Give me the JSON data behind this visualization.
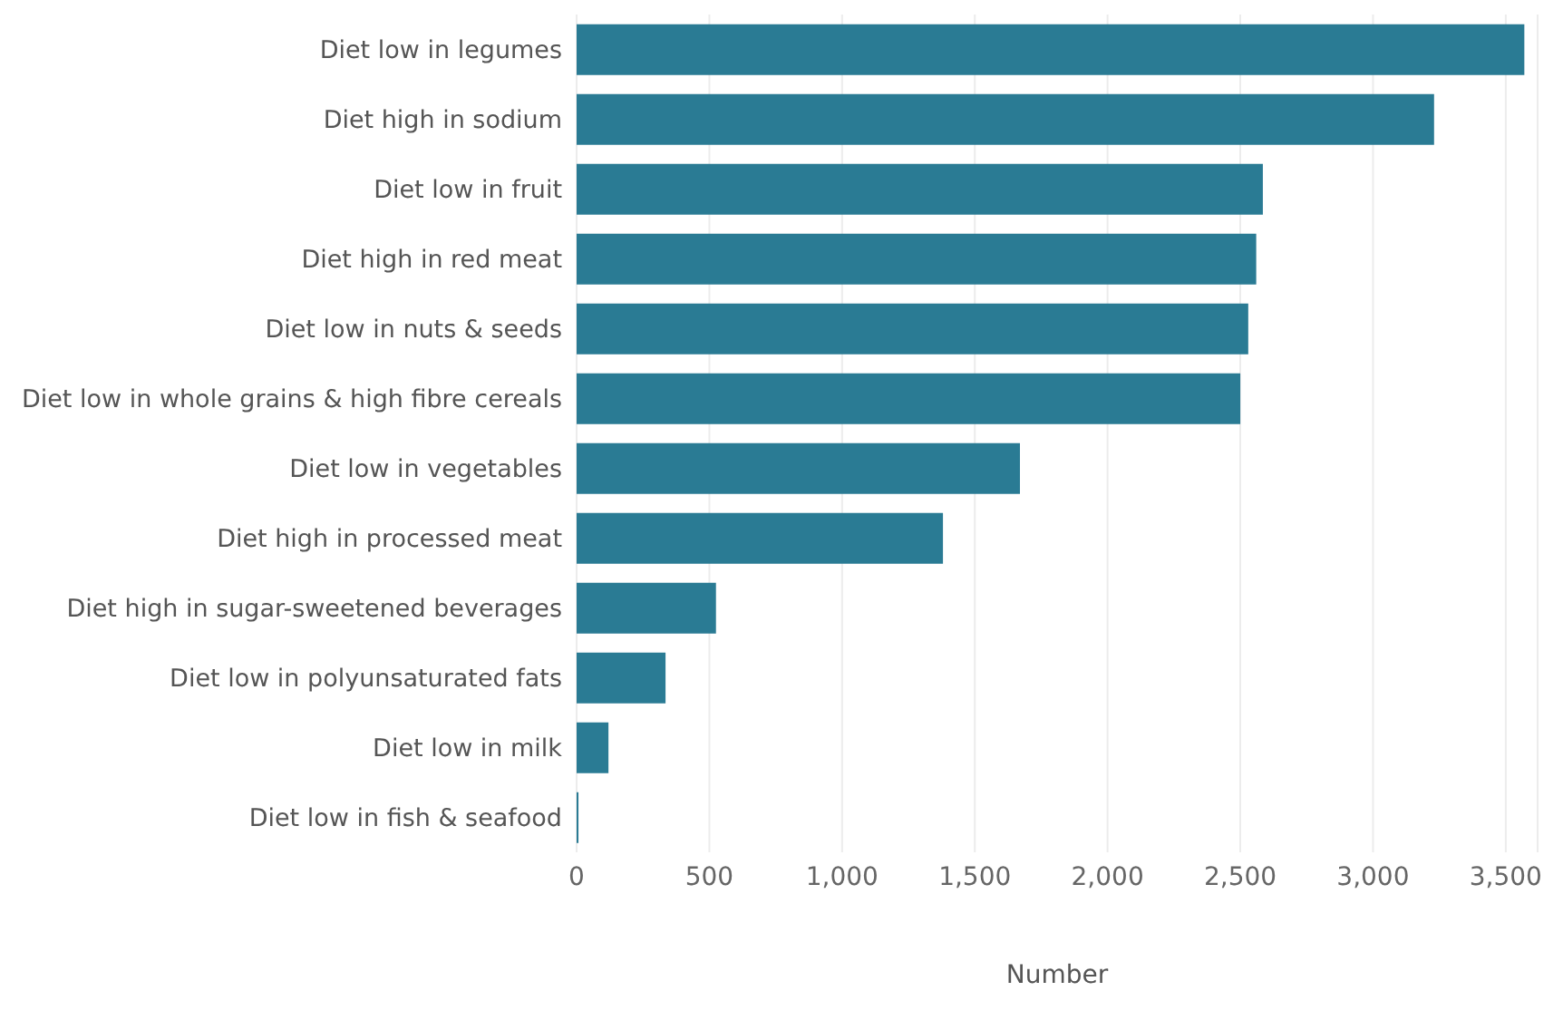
{
  "chart_data": {
    "type": "bar",
    "orientation": "horizontal",
    "xlabel": "Number",
    "categories": [
      "Diet low in legumes",
      "Diet high in sodium",
      "Diet low in fruit",
      "Diet high in red meat",
      "Diet low in nuts & seeds",
      "Diet low in whole grains & high fibre cereals",
      "Diet low in vegetables",
      "Diet high in processed meat",
      "Diet high in sugar-sweetened beverages",
      "Diet low in polyunsaturated fats",
      "Diet low in milk",
      "Diet low in fish & seafood"
    ],
    "values": [
      3570,
      3230,
      2585,
      2560,
      2530,
      2500,
      1670,
      1380,
      525,
      335,
      120,
      7
    ],
    "color": "#2a7b94",
    "xlim": [
      0,
      3620
    ],
    "xticks": [
      {
        "value": 0,
        "label": "0"
      },
      {
        "value": 500,
        "label": "500"
      },
      {
        "value": 1000,
        "label": "1,000"
      },
      {
        "value": 1500,
        "label": "1,500"
      },
      {
        "value": 2000,
        "label": "2,000"
      },
      {
        "value": 2500,
        "label": "2,500"
      },
      {
        "value": 3000,
        "label": "3,000"
      },
      {
        "value": 3500,
        "label": "3,500"
      }
    ],
    "grid": "x"
  }
}
